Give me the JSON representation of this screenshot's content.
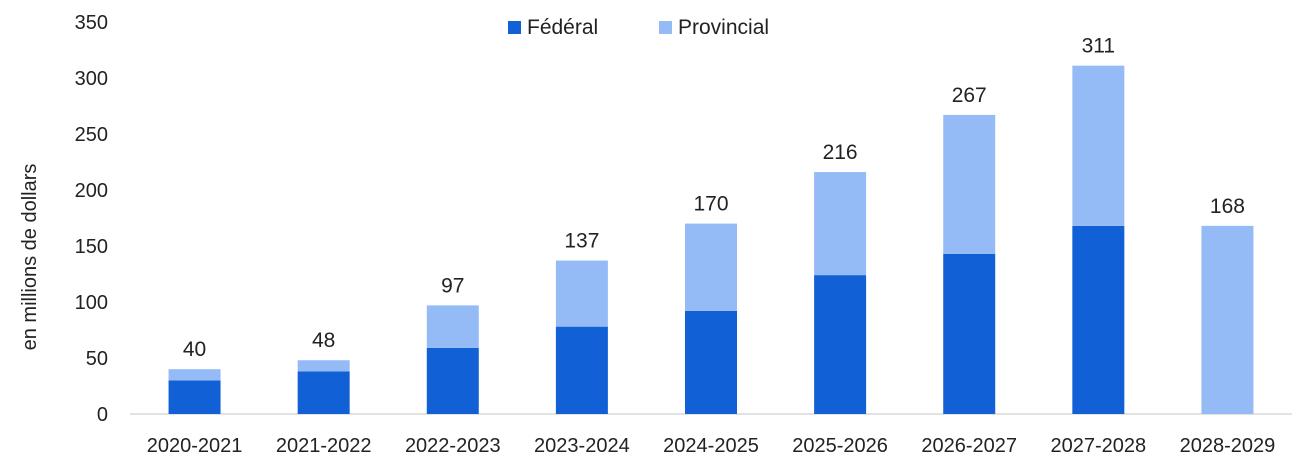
{
  "chart_data": {
    "type": "bar",
    "stacked": true,
    "title": "",
    "xlabel": "",
    "ylabel": "en millions de dollars",
    "ylim": [
      0,
      350
    ],
    "yticks": [
      0,
      50,
      100,
      150,
      200,
      250,
      300,
      350
    ],
    "grid": false,
    "legend_position": "top-center",
    "categories": [
      "2020-2021",
      "2021-2022",
      "2022-2023",
      "2023-2024",
      "2024-2025",
      "2025-2026",
      "2026-2027",
      "2027-2028",
      "2028-2029"
    ],
    "series": [
      {
        "name": "Fédéral",
        "color": "#1160d6",
        "values": [
          30,
          38,
          59,
          78,
          92,
          124,
          143,
          168,
          0
        ]
      },
      {
        "name": "Provincial",
        "color": "#94bbf6",
        "values": [
          10,
          10,
          38,
          59,
          78,
          92,
          124,
          143,
          168
        ]
      }
    ],
    "totals": [
      "40",
      "48",
      "97",
      "137",
      "170",
      "216",
      "267",
      "311",
      "168"
    ]
  }
}
